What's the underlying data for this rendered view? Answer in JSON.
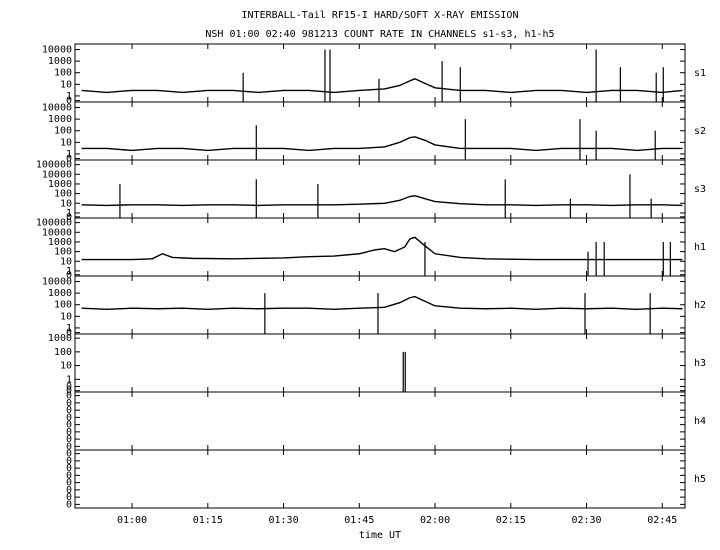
{
  "title": "INTERBALL-Tail RF15-I HARD/SOFT X-RAY EMISSION",
  "subtitle": "NSH 01:00 02:40 981213  COUNT RATE IN CHANNELS s1-s3, h1-h5",
  "xlabel": "time UT",
  "xlim": [
    48.7,
    169.5
  ],
  "xticks": [
    {
      "value": 60,
      "label": "01:00"
    },
    {
      "value": 75,
      "label": "01:15"
    },
    {
      "value": 90,
      "label": "01:30"
    },
    {
      "value": 105,
      "label": "01:45"
    },
    {
      "value": 120,
      "label": "02:00"
    },
    {
      "value": 135,
      "label": "02:15"
    },
    {
      "value": 150,
      "label": "02:30"
    },
    {
      "value": 165,
      "label": "02:45"
    }
  ],
  "chart_data": [
    {
      "type": "line",
      "name": "s1",
      "log": true,
      "ylim": [
        0.3,
        30000
      ],
      "yticks": [
        10000,
        1000,
        100,
        10,
        1,
        {
          "value": 0.4,
          "label": "0"
        }
      ],
      "x": [
        50,
        55,
        60,
        65,
        70,
        75,
        80,
        85,
        90,
        95,
        100,
        105,
        110,
        113,
        115,
        116,
        118,
        120,
        125,
        130,
        135,
        140,
        145,
        150,
        155,
        160,
        165,
        169
      ],
      "values": [
        3,
        2,
        3,
        3,
        2,
        3,
        3,
        2,
        3,
        3,
        2,
        3,
        4,
        8,
        20,
        30,
        12,
        5,
        3,
        3,
        2,
        3,
        3,
        2,
        3,
        3,
        2,
        3
      ],
      "spikes": {
        "x": [
          82,
          98.2,
          99.2,
          108.9,
          121.4,
          125,
          151.9,
          156.7,
          163.8,
          165.2
        ],
        "values": [
          100,
          10000,
          10000,
          30,
          1000,
          300,
          10000,
          300,
          100,
          300
        ]
      }
    },
    {
      "type": "line",
      "name": "s2",
      "log": true,
      "ylim": [
        0.3,
        30000
      ],
      "yticks": [
        10000,
        1000,
        100,
        10,
        1,
        {
          "value": 0.4,
          "label": "0"
        }
      ],
      "x": [
        50,
        55,
        60,
        65,
        70,
        75,
        80,
        85,
        90,
        95,
        100,
        105,
        110,
        113,
        115,
        116,
        118,
        120,
        125,
        130,
        135,
        140,
        145,
        150,
        155,
        160,
        165,
        169
      ],
      "values": [
        3,
        3,
        2,
        3,
        3,
        2,
        3,
        3,
        3,
        2,
        3,
        3,
        4,
        10,
        25,
        30,
        15,
        6,
        3,
        3,
        3,
        2,
        3,
        3,
        3,
        2,
        3,
        3
      ],
      "spikes": {
        "x": [
          84.6,
          126,
          148.7,
          151.9,
          163.6
        ],
        "values": [
          300,
          1000,
          1000,
          100,
          100
        ]
      }
    },
    {
      "type": "line",
      "name": "s3",
      "log": true,
      "ylim": [
        0.3,
        300000
      ],
      "yticks": [
        100000,
        10000,
        1000,
        100,
        10,
        1,
        {
          "value": 0.4,
          "label": "0"
        }
      ],
      "x": [
        50,
        55,
        60,
        65,
        70,
        75,
        80,
        85,
        90,
        95,
        100,
        105,
        110,
        113,
        115,
        116,
        118,
        120,
        125,
        130,
        135,
        140,
        145,
        150,
        155,
        160,
        165,
        169
      ],
      "values": [
        7,
        6,
        7,
        7,
        6,
        7,
        7,
        6,
        7,
        7,
        7,
        8,
        10,
        20,
        50,
        60,
        30,
        15,
        9,
        7,
        7,
        6,
        7,
        7,
        6,
        7,
        7,
        6
      ],
      "spikes": {
        "x": [
          57.6,
          84.6,
          96.8,
          133.9,
          146.8,
          158.6,
          162.8
        ],
        "values": [
          1000,
          3000,
          1000,
          3000,
          30,
          10000,
          30
        ]
      }
    },
    {
      "type": "line",
      "name": "h1",
      "log": true,
      "ylim": [
        0.3,
        300000
      ],
      "yticks": [
        100000,
        10000,
        1000,
        100,
        10,
        1,
        {
          "value": 0.4,
          "label": "0"
        }
      ],
      "x": [
        50,
        55,
        60,
        64,
        66,
        68,
        72,
        80,
        90,
        95,
        100,
        105,
        108,
        110,
        112,
        114,
        115,
        116,
        118,
        120,
        125,
        130,
        140,
        150,
        160,
        169
      ],
      "values": [
        15,
        15,
        15,
        18,
        60,
        25,
        20,
        18,
        22,
        30,
        35,
        60,
        150,
        200,
        100,
        300,
        2000,
        3000,
        400,
        60,
        25,
        18,
        15,
        15,
        15,
        15
      ],
      "spikes": {
        "x": [
          118,
          150.3,
          151.9,
          153.5,
          165.2,
          166.6
        ],
        "values": [
          1000,
          100,
          1000,
          1000,
          1000,
          1000
        ]
      }
    },
    {
      "type": "line",
      "name": "h2",
      "log": true,
      "ylim": [
        0.3,
        30000
      ],
      "yticks": [
        10000,
        1000,
        100,
        10,
        1,
        {
          "value": 0.4,
          "label": "0"
        }
      ],
      "x": [
        50,
        55,
        60,
        65,
        70,
        75,
        80,
        85,
        90,
        95,
        100,
        105,
        110,
        113,
        115,
        116,
        118,
        120,
        125,
        130,
        135,
        140,
        145,
        150,
        155,
        160,
        165,
        169
      ],
      "values": [
        50,
        40,
        50,
        45,
        50,
        40,
        50,
        45,
        50,
        50,
        40,
        50,
        60,
        150,
        400,
        500,
        200,
        80,
        50,
        45,
        50,
        40,
        50,
        45,
        50,
        40,
        50,
        45
      ],
      "spikes": {
        "x": [
          86.3,
          108.7,
          149.7,
          162.6
        ],
        "values": [
          1000,
          1000,
          1000,
          1000
        ]
      }
    },
    {
      "type": "line",
      "name": "h3",
      "log": true,
      "ylim": [
        0.12,
        2000
      ],
      "yticks": [
        1000,
        100,
        10,
        1,
        {
          "value": 0.3,
          "label": "0"
        },
        {
          "value": 0.15,
          "label": "0"
        }
      ],
      "x": [],
      "values": [],
      "spikes": {
        "x": [
          113.7,
          114.1
        ],
        "values": [
          100,
          100
        ]
      }
    },
    {
      "type": "line",
      "name": "h4",
      "log": false,
      "ylim": [
        -0.5,
        7.5
      ],
      "yticks": [
        {
          "value": 7,
          "label": "0"
        },
        {
          "value": 6,
          "label": "0"
        },
        {
          "value": 5,
          "label": "0"
        },
        {
          "value": 4,
          "label": "0"
        },
        {
          "value": 3,
          "label": "0"
        },
        {
          "value": 2,
          "label": "0"
        },
        {
          "value": 1,
          "label": "0"
        },
        {
          "value": 0,
          "label": "0"
        }
      ],
      "x": [],
      "values": [],
      "spikes": {
        "x": [],
        "values": []
      }
    },
    {
      "type": "line",
      "name": "h5",
      "log": false,
      "ylim": [
        -0.5,
        7.5
      ],
      "yticks": [
        {
          "value": 7,
          "label": "0"
        },
        {
          "value": 6,
          "label": "0"
        },
        {
          "value": 5,
          "label": "0"
        },
        {
          "value": 4,
          "label": "0"
        },
        {
          "value": 3,
          "label": "0"
        },
        {
          "value": 2,
          "label": "0"
        },
        {
          "value": 1,
          "label": "0"
        },
        {
          "value": 0,
          "label": "0"
        }
      ],
      "x": [],
      "values": [],
      "spikes": {
        "x": [],
        "values": []
      }
    }
  ]
}
